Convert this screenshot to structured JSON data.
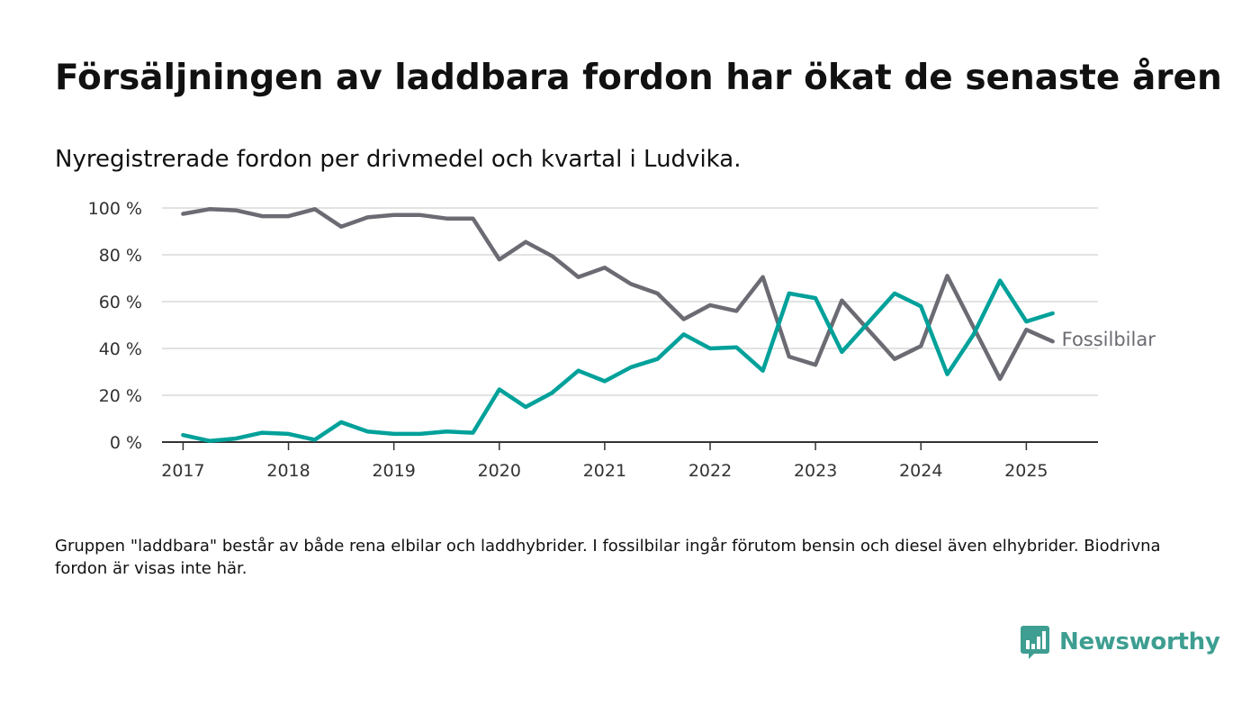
{
  "brand": {
    "name": "Newsworthy",
    "color": "#3d9e91",
    "icon": "bar-chart-speech-bubble-icon"
  },
  "footnote": "Gruppen \"laddbara\" består av både rena elbilar och laddhybrider. I fossilbilar ingår förutom bensin och diesel även elhybrider. Biodrivna fordon är visas inte här.",
  "chart_data": {
    "type": "line",
    "title": "Försäljningen av laddbara fordon har ökat de senaste åren",
    "subtitle": "Nyregistrerade fordon per drivmedel och kvartal i Ludvika.",
    "xlabel": "",
    "ylabel": "",
    "x_ticks": [
      "2017",
      "2018",
      "2019",
      "2020",
      "2021",
      "2022",
      "2023",
      "2024",
      "2025"
    ],
    "x_range": [
      2016.8,
      2025.68
    ],
    "y_ticks": [
      {
        "value": 0,
        "label": "0 %"
      },
      {
        "value": 20,
        "label": "20 %"
      },
      {
        "value": 40,
        "label": "40 %"
      },
      {
        "value": 60,
        "label": "60 %"
      },
      {
        "value": 80,
        "label": "80 %"
      },
      {
        "value": 100,
        "label": "100 %"
      }
    ],
    "ylim": [
      0,
      100
    ],
    "grid": true,
    "x": [
      2017.0,
      2017.25,
      2017.5,
      2017.75,
      2018.0,
      2018.25,
      2018.5,
      2018.75,
      2019.0,
      2019.25,
      2019.5,
      2019.75,
      2020.0,
      2020.25,
      2020.5,
      2020.75,
      2021.0,
      2021.25,
      2021.5,
      2021.75,
      2022.0,
      2022.25,
      2022.5,
      2022.75,
      2023.0,
      2023.25,
      2023.5,
      2023.75,
      2024.0,
      2024.25,
      2024.5,
      2024.75,
      2025.0,
      2025.25
    ],
    "series": [
      {
        "name": "Fossilbilar",
        "color": "#6b6b73",
        "label_visible": true,
        "values": [
          97.5,
          99.5,
          99,
          96.5,
          96.5,
          99.5,
          92,
          96,
          97,
          97,
          95.5,
          95.5,
          78,
          85.5,
          79.5,
          70.5,
          74.5,
          67.5,
          63.5,
          52.5,
          58.5,
          56,
          70.5,
          36.5,
          33,
          60.5,
          48,
          35.5,
          41,
          71,
          49,
          27,
          48,
          43
        ]
      },
      {
        "name": "",
        "color": "#00a19a",
        "label_visible": false,
        "values": [
          3,
          0.5,
          1.5,
          4,
          3.5,
          1,
          8.5,
          4.5,
          3.5,
          3.5,
          4.5,
          4,
          22.5,
          15,
          21,
          30.5,
          26,
          32,
          35.5,
          46,
          40,
          40.5,
          30.5,
          63.5,
          61.5,
          38.5,
          51,
          63.5,
          58,
          29,
          46,
          69,
          51.5,
          55
        ]
      }
    ]
  }
}
